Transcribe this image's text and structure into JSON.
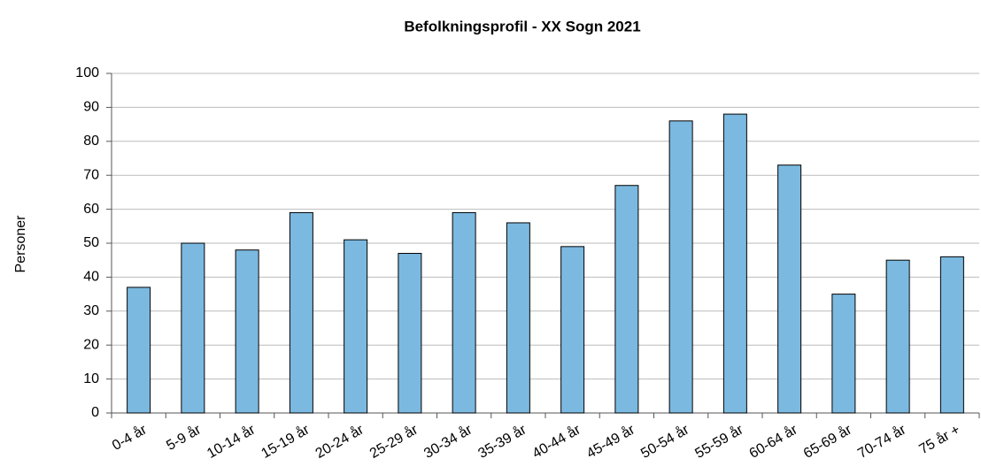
{
  "chart_data": {
    "type": "bar",
    "title": "Befolkningsprofil - XX Sogn 2021",
    "y_label": "Personer",
    "categories": [
      "0-4 år",
      "5-9 år",
      "10-14 år",
      "15-19 år",
      "20-24 år",
      "25-29 år",
      "30-34 år",
      "35-39 år",
      "40-44 år",
      "45-49 år",
      "50-54 år",
      "55-59 år",
      "60-64 år",
      "65-69 år",
      "70-74 år",
      "75 år +"
    ],
    "values": [
      37,
      50,
      48,
      59,
      51,
      47,
      59,
      56,
      49,
      67,
      86,
      88,
      73,
      35,
      45,
      46
    ],
    "color": "#7cb9e0",
    "ylim": [
      0,
      100
    ],
    "yticks": [
      0,
      10,
      20,
      30,
      40,
      50,
      60,
      70,
      80,
      90,
      100
    ],
    "grid": true
  }
}
